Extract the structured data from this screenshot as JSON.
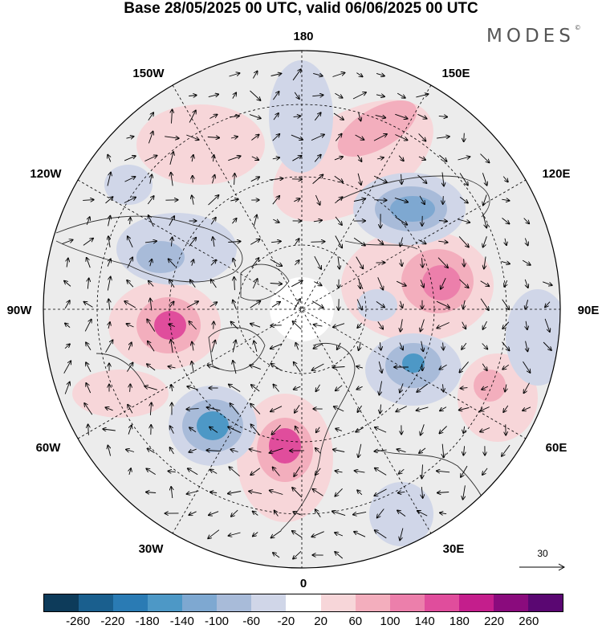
{
  "header": {
    "title": "Base 28/05/2025 00 UTC, valid 06/06/2025 00 UTC",
    "brand": "MODES",
    "brand_mark": "©"
  },
  "map": {
    "projection": "north-polar-stereographic",
    "longitude_labels": {
      "top": "180",
      "bottom": "0",
      "left": "90W",
      "right": "90E",
      "w150": "150W",
      "e150": "150E",
      "w120": "120W",
      "e120": "120E",
      "w60": "60W",
      "e60": "60E",
      "w30": "30W",
      "e30": "30E"
    },
    "vector_scale_label": "30",
    "colors": {
      "neutral_field": "#ececec",
      "land_outline": "#333333",
      "graticule": "#000000"
    }
  },
  "colorbar": {
    "ticks": [
      "-260",
      "-220",
      "-180",
      "-140",
      "-100",
      "-60",
      "-20",
      "20",
      "60",
      "100",
      "140",
      "180",
      "220",
      "260"
    ],
    "colors": [
      "#0d3b5a",
      "#1a5f8e",
      "#2a7bb4",
      "#4d98c6",
      "#7ea8d1",
      "#a8bbd9",
      "#d0d6e8",
      "#ffffff",
      "#f7d6d9",
      "#f3aebd",
      "#ec7fab",
      "#e04d9c",
      "#c41e8c",
      "#8a0b7d",
      "#5a0772"
    ]
  }
}
